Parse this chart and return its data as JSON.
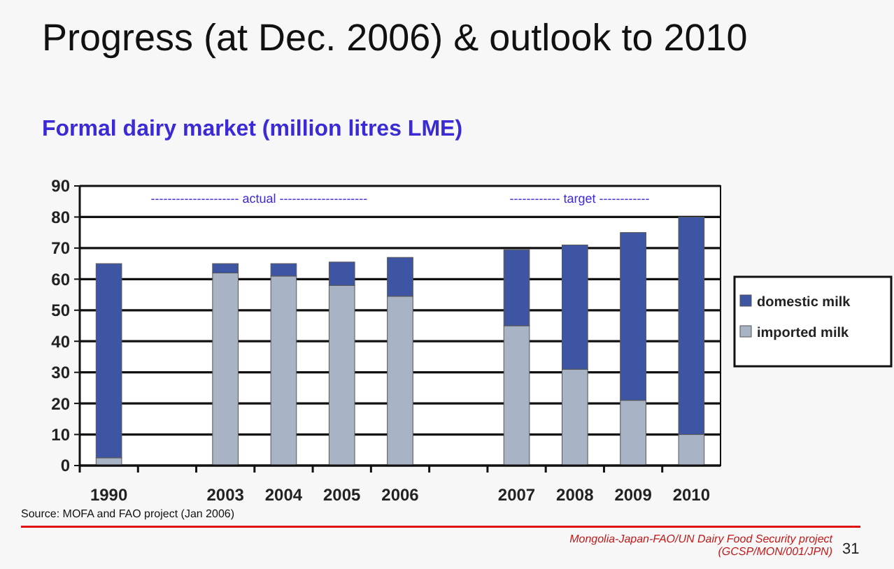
{
  "chart_data": {
    "type": "bar",
    "title": "Progress (at Dec. 2006) & outlook to 2010",
    "subtitle": "Formal dairy market (million litres LME)",
    "categories": [
      "1990",
      null,
      "2003",
      "2004",
      "2005",
      "2006",
      null,
      "2007",
      "2008",
      "2009",
      "2010"
    ],
    "stacked": true,
    "series": [
      {
        "name": "imported milk",
        "color": "#a9b3c6",
        "values": [
          2.5,
          null,
          62,
          61,
          58,
          54.5,
          null,
          45,
          31,
          21,
          10
        ]
      },
      {
        "name": "domestic milk",
        "color": "#3d55a3",
        "values": [
          62.5,
          null,
          3,
          4,
          7.5,
          12.5,
          null,
          24.5,
          40,
          54,
          70
        ]
      }
    ],
    "ylim": [
      0,
      90
    ],
    "yticks": [
      0,
      10,
      20,
      30,
      40,
      50,
      60,
      70,
      80,
      90
    ],
    "grid": "y",
    "legend": "right",
    "annotations": [
      "--------------------- actual ---------------------",
      "------------ target ------------",
      "Source: MOFA and FAO project (Jan 2006)",
      "Mongolia-Japan-FAO/UN  Dairy Food Security project (GCSP/MON/001/JPN)",
      "31"
    ]
  }
}
